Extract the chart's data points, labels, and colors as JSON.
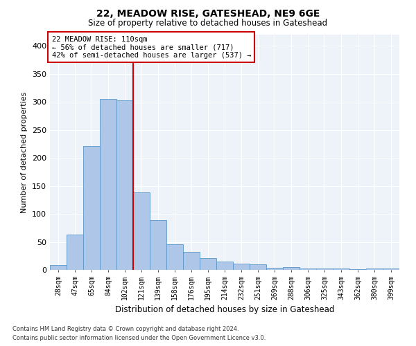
{
  "title": "22, MEADOW RISE, GATESHEAD, NE9 6GE",
  "subtitle": "Size of property relative to detached houses in Gateshead",
  "xlabel": "Distribution of detached houses by size in Gateshead",
  "ylabel": "Number of detached properties",
  "categories": [
    "28sqm",
    "47sqm",
    "65sqm",
    "84sqm",
    "102sqm",
    "121sqm",
    "139sqm",
    "158sqm",
    "176sqm",
    "195sqm",
    "214sqm",
    "232sqm",
    "251sqm",
    "269sqm",
    "288sqm",
    "306sqm",
    "325sqm",
    "343sqm",
    "362sqm",
    "380sqm",
    "399sqm"
  ],
  "values": [
    9,
    63,
    221,
    305,
    303,
    138,
    89,
    46,
    32,
    21,
    15,
    11,
    10,
    4,
    5,
    3,
    2,
    2,
    1,
    2,
    3
  ],
  "bar_color": "#aec6e8",
  "bar_edge_color": "#5a96c8",
  "property_line_x": 4.5,
  "property_label": "22 MEADOW RISE: 110sqm",
  "annotation_line1": "← 56% of detached houses are smaller (717)",
  "annotation_line2": "42% of semi-detached houses are larger (537) →",
  "annotation_box_color": "#ffffff",
  "annotation_box_edge_color": "#cc0000",
  "vline_color": "#cc0000",
  "ylim": [
    0,
    420
  ],
  "yticks": [
    0,
    50,
    100,
    150,
    200,
    250,
    300,
    350,
    400
  ],
  "background_color": "#eef2f9",
  "grid_color": "#ffffff",
  "footer_line1": "Contains HM Land Registry data © Crown copyright and database right 2024.",
  "footer_line2": "Contains public sector information licensed under the Open Government Licence v3.0.",
  "fig_width": 6.0,
  "fig_height": 5.0,
  "dpi": 100
}
